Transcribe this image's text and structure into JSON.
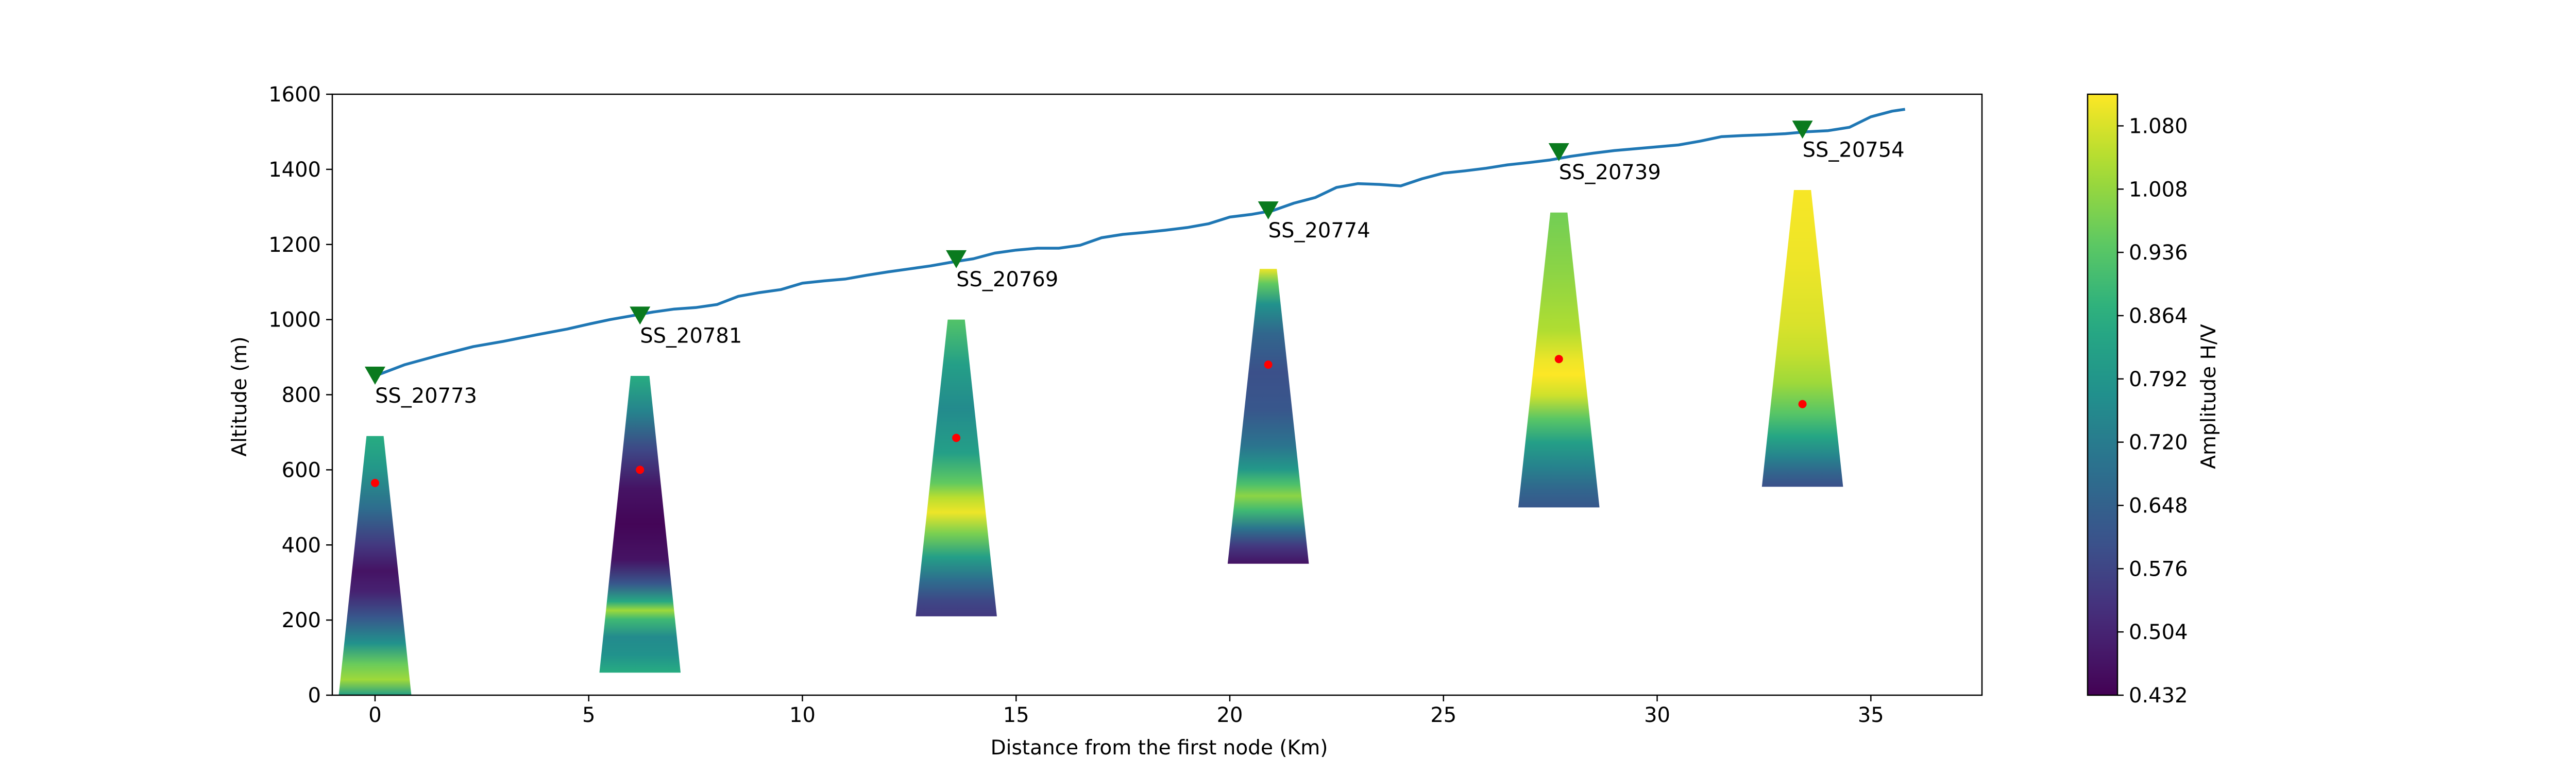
{
  "chart_data": {
    "type": "area",
    "xlabel": "Distance from the first node (Km)",
    "ylabel": "Altitude (m)",
    "xlim": [
      -1.0,
      37.6
    ],
    "ylim": [
      0,
      1600
    ],
    "x_ticks": [
      0,
      5,
      10,
      15,
      20,
      25,
      30,
      35
    ],
    "y_ticks": [
      0,
      200,
      400,
      600,
      800,
      1000,
      1200,
      1400,
      1600
    ],
    "grid": false,
    "colormap": "viridis",
    "colorbar": {
      "label": "Amplitude H/V",
      "min": 0.432,
      "max": 1.116,
      "ticks": [
        "0.432",
        "0.504",
        "0.576",
        "0.648",
        "0.720",
        "0.792",
        "0.864",
        "0.936",
        "1.008",
        "1.080"
      ],
      "tick_values": [
        0.432,
        0.504,
        0.576,
        0.648,
        0.72,
        0.792,
        0.864,
        0.936,
        1.008,
        1.08
      ]
    },
    "topography": {
      "color": "#1f77b4",
      "x": [
        0,
        0.7,
        1.5,
        2.3,
        3.0,
        3.8,
        4.5,
        5.0,
        5.5,
        6.0,
        6.5,
        7.0,
        7.5,
        8.0,
        8.5,
        9.0,
        9.5,
        10.0,
        10.5,
        11.0,
        11.5,
        12.0,
        12.5,
        13.0,
        13.5,
        14.0,
        14.5,
        15.0,
        15.5,
        16.0,
        16.5,
        17.0,
        17.5,
        18.0,
        18.5,
        19.0,
        19.5,
        20.0,
        20.5,
        21.0,
        21.5,
        22.0,
        22.5,
        23.0,
        23.5,
        24.0,
        24.5,
        25.0,
        25.5,
        26.0,
        26.5,
        27.0,
        27.5,
        28.0,
        28.5,
        29.0,
        29.5,
        30.0,
        30.5,
        31.0,
        31.5,
        32.0,
        32.5,
        33.0,
        33.5,
        34.0,
        34.5,
        35.0,
        35.5,
        35.8
      ],
      "y": [
        850,
        880,
        905,
        928,
        942,
        960,
        975,
        988,
        1000,
        1010,
        1020,
        1028,
        1032,
        1040,
        1062,
        1072,
        1080,
        1097,
        1103,
        1108,
        1118,
        1127,
        1135,
        1143,
        1153,
        1162,
        1177,
        1185,
        1190,
        1190,
        1198,
        1218,
        1227,
        1232,
        1238,
        1245,
        1255,
        1273,
        1280,
        1290,
        1310,
        1325,
        1352,
        1362,
        1360,
        1356,
        1375,
        1390,
        1396,
        1403,
        1412,
        1418,
        1425,
        1435,
        1443,
        1450,
        1455,
        1460,
        1465,
        1475,
        1487,
        1490,
        1492,
        1495,
        1500,
        1503,
        1512,
        1540,
        1555,
        1560
      ]
    },
    "stations": [
      {
        "name": "SS_20773",
        "x": 0.0,
        "elevation": 850,
        "col_top": 690,
        "col_bottom": 0,
        "top_half_width": 0.2,
        "bottom_half_width": 0.85,
        "peak_depth": 565,
        "profile": [
          [
            0,
            0.86
          ],
          [
            0.12,
            0.8
          ],
          [
            0.28,
            0.68
          ],
          [
            0.42,
            0.55
          ],
          [
            0.52,
            0.47
          ],
          [
            0.6,
            0.5
          ],
          [
            0.7,
            0.62
          ],
          [
            0.8,
            0.78
          ],
          [
            0.88,
            0.96
          ],
          [
            0.94,
            1.02
          ],
          [
            1.0,
            0.82
          ]
        ]
      },
      {
        "name": "SS_20781",
        "x": 6.2,
        "elevation": 1010,
        "col_top": 850,
        "col_bottom": 60,
        "top_half_width": 0.22,
        "bottom_half_width": 0.95,
        "peak_depth": 600,
        "profile": [
          [
            0,
            0.86
          ],
          [
            0.12,
            0.74
          ],
          [
            0.25,
            0.58
          ],
          [
            0.38,
            0.47
          ],
          [
            0.5,
            0.44
          ],
          [
            0.62,
            0.47
          ],
          [
            0.7,
            0.62
          ],
          [
            0.76,
            0.85
          ],
          [
            0.79,
            1.02
          ],
          [
            0.82,
            0.9
          ],
          [
            0.88,
            0.76
          ],
          [
            0.94,
            0.78
          ],
          [
            1.0,
            0.86
          ]
        ]
      },
      {
        "name": "SS_20769",
        "x": 13.6,
        "elevation": 1160,
        "col_top": 1000,
        "col_bottom": 210,
        "top_half_width": 0.2,
        "bottom_half_width": 0.95,
        "peak_depth": 685,
        "profile": [
          [
            0,
            0.93
          ],
          [
            0.15,
            0.82
          ],
          [
            0.3,
            0.76
          ],
          [
            0.45,
            0.82
          ],
          [
            0.55,
            0.95
          ],
          [
            0.6,
            1.05
          ],
          [
            0.65,
            1.1
          ],
          [
            0.72,
            0.98
          ],
          [
            0.8,
            0.82
          ],
          [
            0.88,
            0.68
          ],
          [
            0.95,
            0.58
          ],
          [
            1.0,
            0.55
          ]
        ]
      },
      {
        "name": "SS_20774",
        "x": 20.9,
        "elevation": 1290,
        "col_top": 1135,
        "col_bottom": 350,
        "top_half_width": 0.2,
        "bottom_half_width": 0.95,
        "peak_depth": 880,
        "profile": [
          [
            0,
            1.1
          ],
          [
            0.05,
            0.95
          ],
          [
            0.12,
            0.78
          ],
          [
            0.22,
            0.66
          ],
          [
            0.35,
            0.6
          ],
          [
            0.48,
            0.62
          ],
          [
            0.6,
            0.7
          ],
          [
            0.68,
            0.8
          ],
          [
            0.73,
            0.92
          ],
          [
            0.77,
            1.0
          ],
          [
            0.82,
            0.9
          ],
          [
            0.88,
            0.7
          ],
          [
            0.94,
            0.55
          ],
          [
            1.0,
            0.47
          ]
        ]
      },
      {
        "name": "SS_20739",
        "x": 27.7,
        "elevation": 1445,
        "col_top": 1285,
        "col_bottom": 500,
        "top_half_width": 0.2,
        "bottom_half_width": 0.95,
        "peak_depth": 895,
        "profile": [
          [
            0,
            0.97
          ],
          [
            0.2,
            1.0
          ],
          [
            0.4,
            1.04
          ],
          [
            0.5,
            1.1
          ],
          [
            0.55,
            1.12
          ],
          [
            0.62,
            1.07
          ],
          [
            0.7,
            0.94
          ],
          [
            0.78,
            0.82
          ],
          [
            0.86,
            0.74
          ],
          [
            0.94,
            0.66
          ],
          [
            1.0,
            0.62
          ]
        ]
      },
      {
        "name": "SS_20754",
        "x": 33.4,
        "elevation": 1505,
        "col_top": 1345,
        "col_bottom": 555,
        "top_half_width": 0.2,
        "bottom_half_width": 0.95,
        "peak_depth": 775,
        "profile": [
          [
            0,
            1.11
          ],
          [
            0.25,
            1.1
          ],
          [
            0.45,
            1.08
          ],
          [
            0.55,
            1.06
          ],
          [
            0.65,
            1.02
          ],
          [
            0.75,
            0.94
          ],
          [
            0.83,
            0.84
          ],
          [
            0.9,
            0.74
          ],
          [
            0.95,
            0.66
          ],
          [
            1.0,
            0.6
          ]
        ]
      }
    ]
  }
}
